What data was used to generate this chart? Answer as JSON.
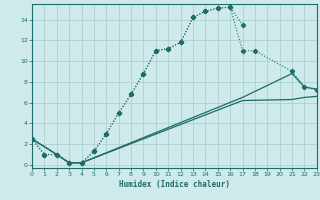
{
  "xlabel": "Humidex (Indice chaleur)",
  "bg_color": "#ceeaea",
  "grid_color": "#aed0d0",
  "line_color": "#1e6b6b",
  "xlim": [
    0,
    23
  ],
  "ylim": [
    -0.3,
    15.5
  ],
  "xticks": [
    0,
    1,
    2,
    3,
    4,
    5,
    6,
    7,
    8,
    9,
    10,
    11,
    12,
    13,
    14,
    15,
    16,
    17,
    18,
    19,
    20,
    21,
    22,
    23
  ],
  "yticks": [
    0,
    2,
    4,
    6,
    8,
    10,
    12,
    14
  ],
  "curve1_x": [
    0,
    1,
    2,
    3,
    4,
    5,
    6,
    7,
    8,
    9,
    10,
    11,
    12,
    13,
    14,
    15,
    16,
    17
  ],
  "curve1_y": [
    2.5,
    1.0,
    1.0,
    0.2,
    0.2,
    1.3,
    3.0,
    5.0,
    6.8,
    8.8,
    11.0,
    11.2,
    11.8,
    14.2,
    14.8,
    15.1,
    15.2,
    13.5
  ],
  "curve2_x": [
    0,
    1,
    2,
    3,
    4,
    5,
    6,
    7,
    8,
    9,
    10,
    11,
    12,
    13,
    14,
    15,
    16,
    17,
    18,
    21,
    22,
    23
  ],
  "curve2_y": [
    2.5,
    1.0,
    1.0,
    0.2,
    0.2,
    1.3,
    3.0,
    5.0,
    6.8,
    8.8,
    11.0,
    11.2,
    11.8,
    14.2,
    14.8,
    15.1,
    15.2,
    11.0,
    11.0,
    9.0,
    7.5,
    7.2
  ],
  "curve3_x": [
    0,
    2,
    3,
    4,
    17,
    21,
    22,
    23
  ],
  "curve3_y": [
    2.5,
    1.0,
    0.2,
    0.2,
    6.5,
    8.8,
    7.5,
    7.3
  ],
  "curve4_x": [
    0,
    2,
    3,
    4,
    17,
    21,
    22,
    23
  ],
  "curve4_y": [
    2.5,
    1.0,
    0.2,
    0.2,
    6.2,
    6.3,
    6.5,
    6.6
  ]
}
